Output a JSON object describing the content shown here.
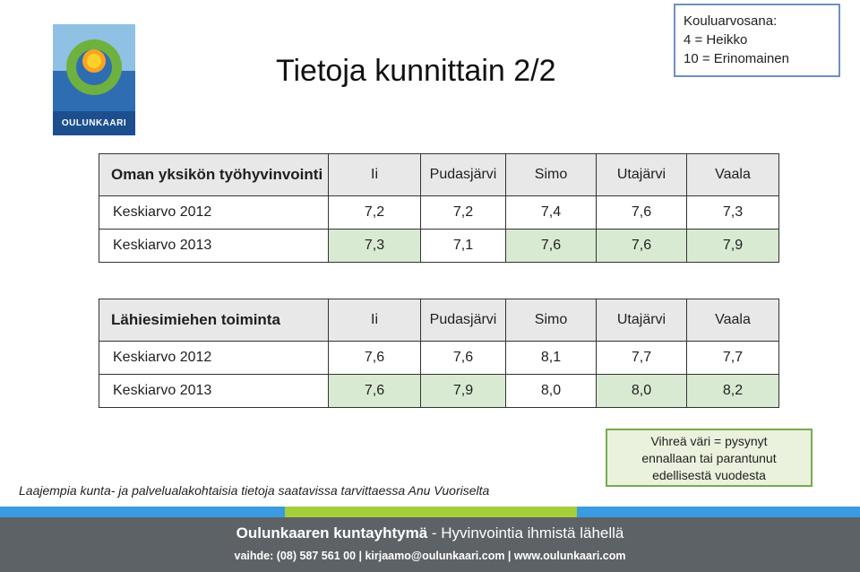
{
  "logo": {
    "name": "OULUNKAARI"
  },
  "title": "Tietoja kunnittain 2/2",
  "grade_legend": {
    "line1": "Kouluarvosana:",
    "line2": "4 = Heikko",
    "line3": "10 = Erinomainen"
  },
  "tables": [
    {
      "header": [
        "Oman yksikön työhyvinvointi",
        "Ii",
        "Pudasjärvi",
        "Simo",
        "Utajärvi",
        "Vaala"
      ],
      "rows": [
        [
          "Keskiarvo 2012",
          "7,2",
          "7,2",
          "7,4",
          "7,6",
          "7,3"
        ],
        [
          "Keskiarvo 2013",
          "7,3",
          "7,1",
          "7,6",
          "7,6",
          "7,9"
        ]
      ]
    },
    {
      "header": [
        "Lähiesimiehen toiminta",
        "Ii",
        "Pudasjärvi",
        "Simo",
        "Utajärvi",
        "Vaala"
      ],
      "rows": [
        [
          "Keskiarvo 2012",
          "7,6",
          "7,6",
          "8,1",
          "7,7",
          "7,7"
        ],
        [
          "Keskiarvo 2013",
          "7,6",
          "7,9",
          "8,0",
          "8,0",
          "8,2"
        ]
      ]
    }
  ],
  "green_note": {
    "line1": "Vihreä väri = pysynyt",
    "line2": "ennallaan tai parantunut",
    "line3": "edellisestä vuodesta"
  },
  "footnote": "Laajempia kunta- ja palvelualakohtaisia tietoja saatavissa tarvittaessa Anu Vuoriselta",
  "footer": {
    "org": "Oulunkaaren kuntayhtymä",
    "tagline": " - Hyvinvointia ihmistä lähellä",
    "contact": "vaihde: (08) 587 561 00  |  kirjaamo@oulunkaari.com  |  www.oulunkaari.com"
  },
  "colors": {
    "improved_cell": "#d9ead3",
    "header_cell": "#e8e8e8",
    "footer_bg": "#5d6266",
    "stripe_blue": "#3a9be0",
    "stripe_green": "#a6ce39"
  }
}
